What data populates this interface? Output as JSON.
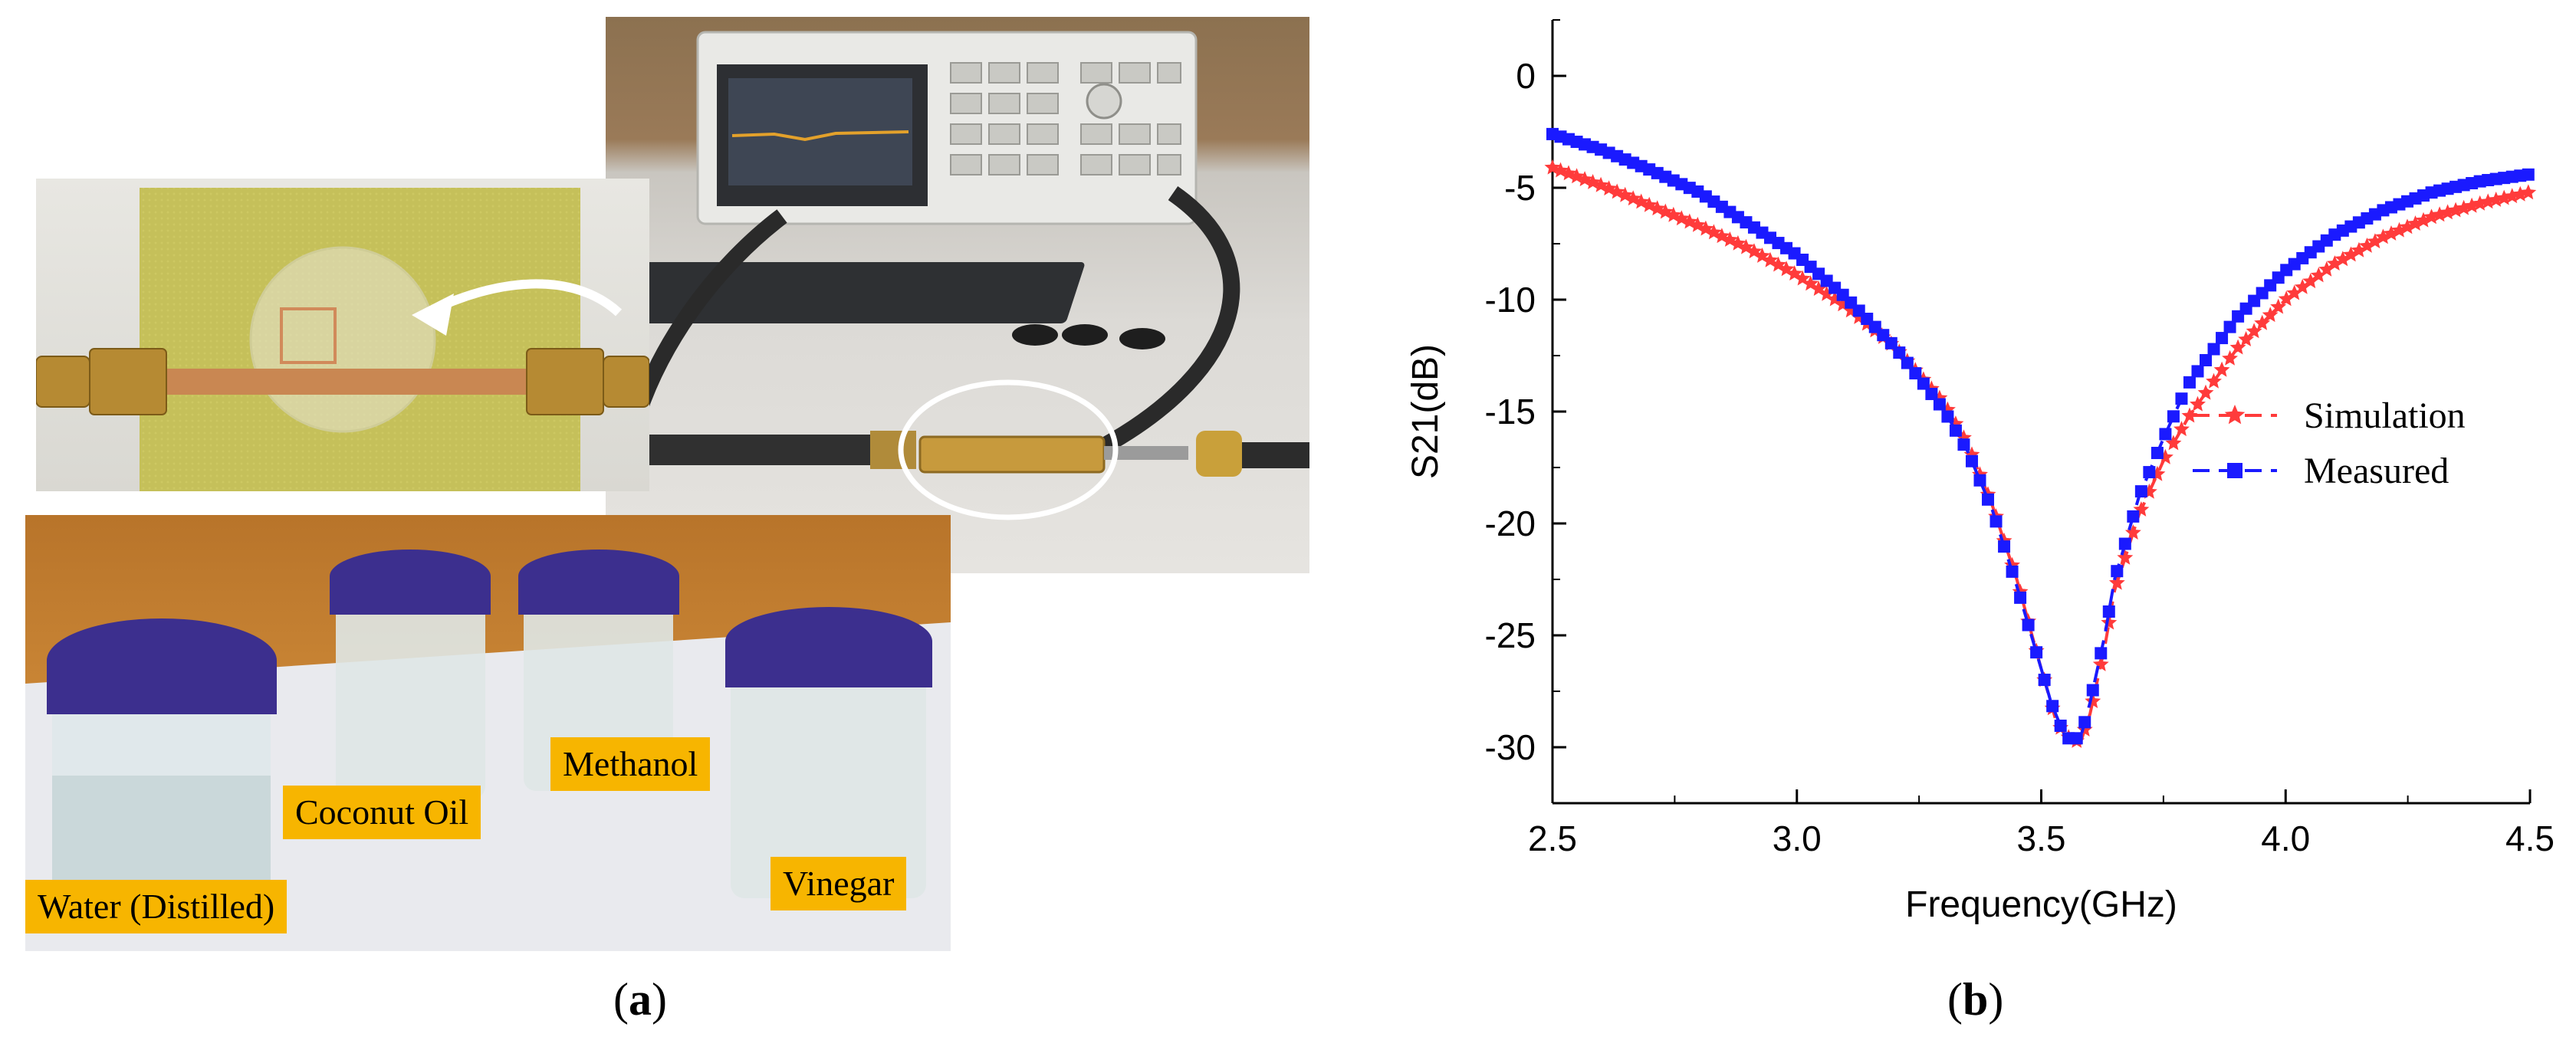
{
  "panel_a": {
    "caption_open": "(",
    "caption_letter": "a",
    "caption_close": ")",
    "sample_labels": [
      "Water (Distilled)",
      "Coconut Oil",
      "Methanol",
      "Vinegar"
    ]
  },
  "panel_b": {
    "caption_open": "(",
    "caption_letter": "b",
    "caption_close": ")"
  },
  "colors": {
    "simulation": "#ff3b3b",
    "measured": "#1a1aff"
  },
  "chart_data": {
    "type": "line",
    "title": "",
    "xlabel": "Frequency(GHz)",
    "ylabel": "S21(dB)",
    "xlim": [
      2.5,
      4.5
    ],
    "ylim": [
      -32.5,
      2.5
    ],
    "x_ticks": [
      "2.5",
      "3.0",
      "3.5",
      "4.0",
      "4.5"
    ],
    "y_ticks": [
      "0",
      "-5",
      "-10",
      "-15",
      "-20",
      "-25",
      "-30"
    ],
    "x_tick_values": [
      2.5,
      3.0,
      3.5,
      4.0,
      4.5
    ],
    "y_tick_values": [
      0,
      -5,
      -10,
      -15,
      -20,
      -25,
      -30
    ],
    "grid": false,
    "legend_position": "right",
    "series": [
      {
        "name": "Simulation",
        "marker": "star",
        "line": "dashed",
        "color": "#ff3b3b",
        "x": [
          2.5,
          2.6,
          2.7,
          2.8,
          2.9,
          3.0,
          3.1,
          3.2,
          3.3,
          3.35,
          3.4,
          3.45,
          3.5,
          3.53,
          3.55,
          3.58,
          3.6,
          3.63,
          3.65,
          3.7,
          3.75,
          3.8,
          3.9,
          4.0,
          4.1,
          4.2,
          4.3,
          4.4,
          4.5
        ],
        "y": [
          -4.1,
          -4.9,
          -5.8,
          -6.7,
          -7.7,
          -8.9,
          -10.3,
          -12.1,
          -14.6,
          -16.5,
          -19.2,
          -22.5,
          -26.5,
          -28.8,
          -29.5,
          -29.8,
          -28.5,
          -25.5,
          -23.0,
          -19.6,
          -17.2,
          -15.3,
          -12.2,
          -10.0,
          -8.4,
          -7.2,
          -6.3,
          -5.7,
          -5.2
        ]
      },
      {
        "name": "Measured",
        "marker": "square",
        "line": "dashed",
        "color": "#1a1aff",
        "x": [
          2.5,
          2.6,
          2.7,
          2.8,
          2.9,
          3.0,
          3.1,
          3.2,
          3.3,
          3.35,
          3.4,
          3.45,
          3.5,
          3.52,
          3.55,
          3.58,
          3.6,
          3.63,
          3.65,
          3.7,
          3.75,
          3.8,
          3.9,
          4.0,
          4.1,
          4.2,
          4.3,
          4.4,
          4.5
        ],
        "y": [
          -2.6,
          -3.3,
          -4.2,
          -5.2,
          -6.6,
          -8.0,
          -9.9,
          -12.1,
          -14.9,
          -16.8,
          -19.4,
          -22.8,
          -26.5,
          -28.0,
          -29.6,
          -29.6,
          -28.0,
          -25.0,
          -22.5,
          -18.8,
          -16.2,
          -13.8,
          -10.8,
          -8.7,
          -7.1,
          -6.0,
          -5.2,
          -4.7,
          -4.4
        ]
      }
    ]
  }
}
